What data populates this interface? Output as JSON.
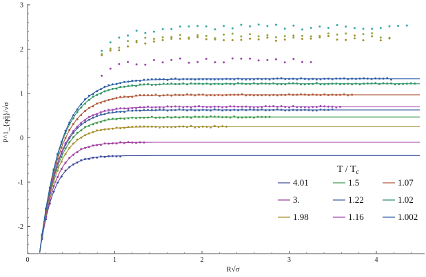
{
  "chart_data": {
    "type": "scatter",
    "title": "",
    "xlabel": "R√σ",
    "ylabel": "P^1_{qq̄}/√σ",
    "xlim": [
      0,
      4.5
    ],
    "ylim": [
      -2.6,
      3
    ],
    "xticks": [
      "0",
      "1",
      "2",
      "3",
      "4"
    ],
    "xtick_values": [
      0,
      1,
      2,
      3,
      4
    ],
    "yticks": [
      "3",
      "2",
      "1",
      "0",
      "-1",
      "-2"
    ],
    "ytick_values": [
      3,
      2,
      1,
      0,
      -1,
      -2
    ],
    "legend": {
      "title": "T / T_c",
      "placement": "bottom-right"
    },
    "series": [
      {
        "name": "4.01",
        "color": "#3d4a9e",
        "plateau": -0.4,
        "fitted": true,
        "xmax": 1.1
      },
      {
        "name": "3.",
        "color": "#a23d9e",
        "plateau": -0.1,
        "fitted": true,
        "xmax": 1.35
      },
      {
        "name": "1.98",
        "color": "#a68f2e",
        "plateau": 0.25,
        "fitted": true,
        "xmax": 2.3
      },
      {
        "name": "1.5",
        "color": "#3f9a4c",
        "plateau": 0.47,
        "fitted": true,
        "xmax": 2.8
      },
      {
        "name": "1.22",
        "color": "#3a5fa0",
        "plateau": 0.63,
        "fitted": true,
        "xmax": 3.5
      },
      {
        "name": "1.16",
        "color": "#a047b0",
        "plateau": 0.7,
        "fitted": true,
        "xmax": 3.6
      },
      {
        "name": "1.07",
        "color": "#b05a3a",
        "plateau": 0.97,
        "fitted": true,
        "xmax": 3.75
      },
      {
        "name": "1.02",
        "color": "#2e9467",
        "plateau": 1.22,
        "fitted": true,
        "xmax": 4.45
      },
      {
        "name": "1.002",
        "color": "#2f5fa8",
        "plateau": 1.33,
        "fitted": true,
        "xmax": 4.2
      },
      {
        "name": "",
        "color": "#a047b0",
        "plateau": 1.75,
        "fitted": false,
        "xmax": 3.3
      },
      {
        "name": "",
        "color": "#a68f2e",
        "plateau": 2.25,
        "fitted": false,
        "xmax": 4.2
      },
      {
        "name": "",
        "color": "#3ba8a8",
        "plateau": 2.5,
        "fitted": false,
        "xmax": 4.4
      },
      {
        "name": "",
        "color": "#8fa84a",
        "plateau": 2.3,
        "fitted": false,
        "xmax": 4.25
      }
    ]
  }
}
